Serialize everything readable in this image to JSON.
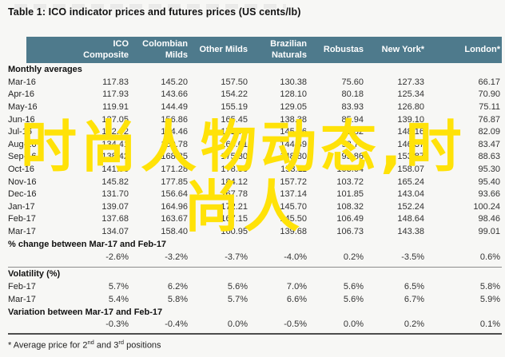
{
  "title": "Table 1: ICO indicator prices and futures prices (US cents/lb)",
  "colors": {
    "header_bg": "#4e7a8c",
    "watermark_yellow": "#ffe208",
    "rule_gray": "#8c8c8c",
    "thick_rule": "#4d4d4d"
  },
  "watermark": {
    "line1": "时尚人物动态,时",
    "line2": "尚人"
  },
  "footnote": {
    "p1": "* Average price for 2",
    "sup1": "nd",
    "p2": " and 3",
    "sup2": "rd",
    "p3": " positions"
  },
  "chart_data": {
    "type": "table",
    "title": "Table 1: ICO indicator prices and futures prices (US cents/lb)",
    "header_lines": [
      [
        "ICO",
        "Composite"
      ],
      [
        "Colombian",
        "Milds"
      ],
      [
        "Other Milds"
      ],
      [
        "Brazilian",
        "Naturals"
      ],
      [
        "Robustas"
      ],
      [
        "New York*"
      ],
      [
        "London*"
      ]
    ],
    "columns": [
      "ICO Composite",
      "Colombian Milds",
      "Other Milds",
      "Brazilian Naturals",
      "Robustas",
      "New York*",
      "London*"
    ],
    "sections": [
      {
        "label": "Monthly averages",
        "rows": [
          {
            "label": "Mar-16",
            "values": [
              "117.83",
              "145.20",
              "157.50",
              "130.38",
              "75.60",
              "127.33",
              "66.17"
            ]
          },
          {
            "label": "Apr-16",
            "values": [
              "117.93",
              "143.66",
              "154.22",
              "128.10",
              "80.18",
              "125.34",
              "70.90"
            ]
          },
          {
            "label": "May-16",
            "values": [
              "119.91",
              "144.49",
              "155.19",
              "129.05",
              "83.93",
              "126.80",
              "75.11"
            ]
          },
          {
            "label": "Jun-16",
            "values": [
              "127.05",
              "156.86",
              "165.45",
              "138.38",
              "85.94",
              "139.10",
              "76.87"
            ]
          },
          {
            "label": "Jul-16",
            "values": [
              "132.92",
              "164.46",
              "171.76",
              "145.76",
              "90.82",
              "148.16",
              "82.09"
            ]
          },
          {
            "label": "Aug-16",
            "values": [
              "134.41",
              "160.78",
              "168.61",
              "144.39",
              "93.79",
              "146.37",
              "83.47"
            ]
          },
          {
            "label": "Sep-16",
            "values": [
              "138.42",
              "168.85",
              "175.30",
              "148.80",
              "95.86",
              "153.87",
              "88.63"
            ]
          },
          {
            "label": "Oct-16",
            "values": [
              "141.56",
              "171.28",
              "178.36",
              "153.11",
              "103.64",
              "158.07",
              "95.30"
            ]
          },
          {
            "label": "Nov-16",
            "values": [
              "145.82",
              "177.85",
              "184.12",
              "157.72",
              "103.72",
              "165.24",
              "95.40"
            ]
          },
          {
            "label": "Dec-16",
            "values": [
              "131.70",
              "156.64",
              "167.78",
              "137.14",
              "101.85",
              "143.04",
              "93.66"
            ]
          },
          {
            "label": "Jan-17",
            "values": [
              "139.07",
              "164.96",
              "172.21",
              "145.70",
              "108.32",
              "152.24",
              "100.24"
            ]
          },
          {
            "label": "Feb-17",
            "values": [
              "137.68",
              "163.67",
              "167.15",
              "145.50",
              "106.49",
              "148.64",
              "98.46"
            ]
          },
          {
            "label": "Mar-17",
            "values": [
              "134.07",
              "158.40",
              "160.95",
              "139.68",
              "106.73",
              "143.38",
              "99.01"
            ]
          }
        ]
      },
      {
        "label": "% change between Mar-17 and Feb-17",
        "pad_below": true,
        "rows": [
          {
            "label": "",
            "values": [
              "-2.6%",
              "-3.2%",
              "-3.7%",
              "-4.0%",
              "0.2%",
              "-3.5%",
              "0.6%"
            ]
          }
        ]
      },
      {
        "label": "Volatility (%)",
        "rule_above": true,
        "rows": [
          {
            "label": "Feb-17",
            "values": [
              "5.7%",
              "6.2%",
              "5.6%",
              "7.0%",
              "5.6%",
              "6.5%",
              "5.8%"
            ]
          },
          {
            "label": "Mar-17",
            "values": [
              "5.4%",
              "5.8%",
              "5.7%",
              "6.6%",
              "5.6%",
              "6.7%",
              "5.9%"
            ]
          }
        ]
      },
      {
        "label": "Variation between Mar-17 and Feb-17",
        "thick_rule_below": true,
        "rows": [
          {
            "label": "",
            "values": [
              "-0.3%",
              "-0.4%",
              "0.0%",
              "-0.5%",
              "0.0%",
              "0.2%",
              "0.1%"
            ]
          }
        ]
      }
    ]
  }
}
